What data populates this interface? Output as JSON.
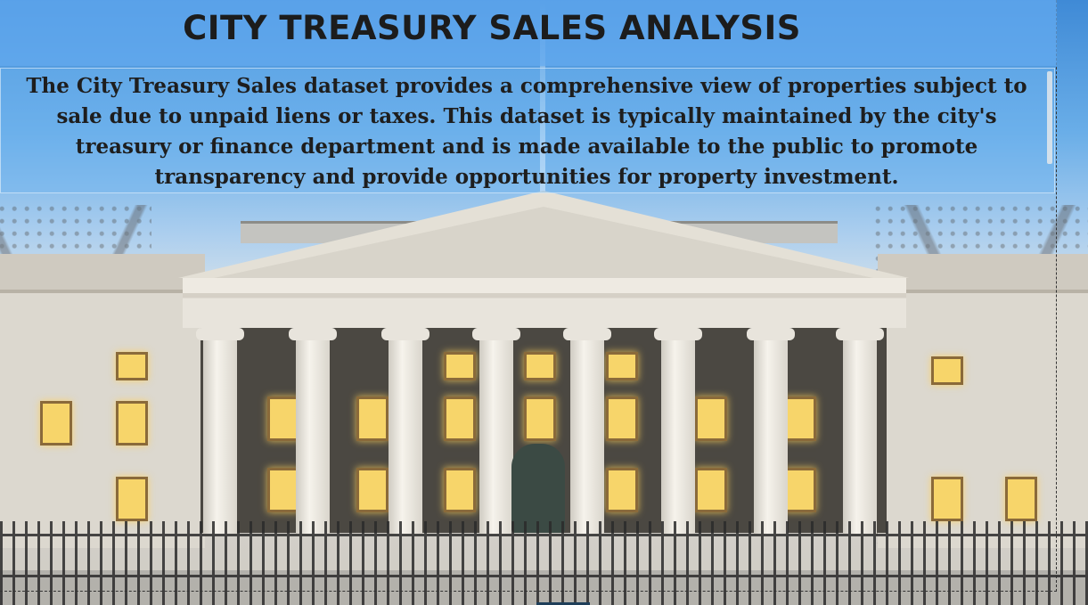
{
  "header": {
    "title": "CITY TREASURY SALES ANALYSIS"
  },
  "description": {
    "text": "The City Treasury Sales dataset provides a comprehensive view of properties subject to sale due to unpaid liens or taxes. This dataset is typically maintained by the city's treasury or finance department and is made available to the public to promote transparency and provide opportunities for property investment."
  },
  "background": {
    "image": "treasury-building-photo",
    "sky_color": "#4a90e2",
    "window_light_color": "#f7d56a"
  }
}
